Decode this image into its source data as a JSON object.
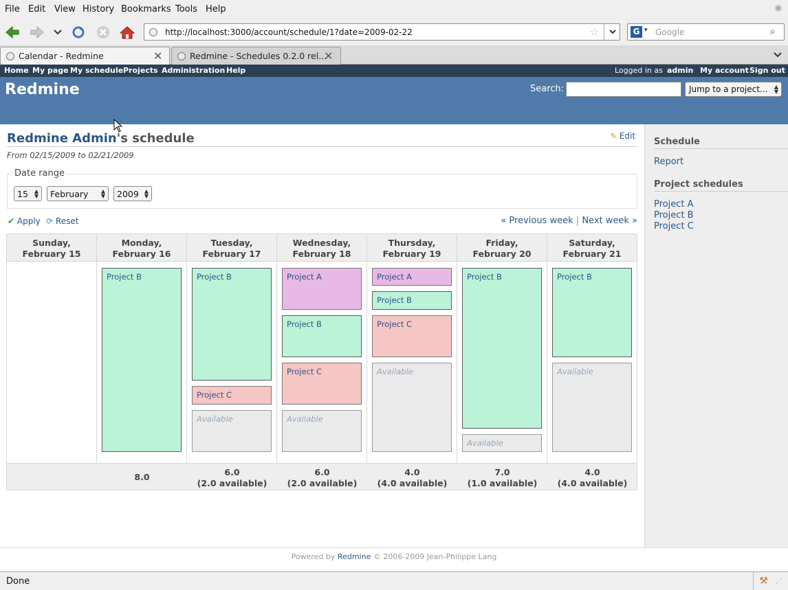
{
  "browser": {
    "menu": [
      "File",
      "Edit",
      "View",
      "History",
      "Bookmarks",
      "Tools",
      "Help"
    ],
    "url": "http://localhost:3000/account/schedule/1?date=2009-02-22",
    "search_placeholder": "Google",
    "tabs": [
      {
        "title": "Calendar - Redmine"
      },
      {
        "title": "Redmine - Schedules 0.2.0 rel..."
      }
    ],
    "status": "Done"
  },
  "topmenu": {
    "left": [
      "Home",
      "My page",
      "My schedule",
      "Projects",
      "Administration",
      "Help"
    ],
    "logged_in_prefix": "Logged in as",
    "user": "admin",
    "my_account": "My account",
    "sign_out": "Sign out"
  },
  "header": {
    "title": "Redmine",
    "search_label": "Search:",
    "jump_label": "Jump to a project..."
  },
  "page": {
    "title_user": "Redmine Admin",
    "title_suffix": "'s schedule",
    "edit": "Edit",
    "from_to": "From 02/15/2009 to 02/21/2009",
    "date_range_legend": "Date range",
    "day_select": "15",
    "month_select": "February",
    "year_select": "2009",
    "apply": "Apply",
    "reset": "Reset",
    "prev_week": "« Previous week",
    "separator": "|",
    "next_week": "Next week »"
  },
  "calendar": {
    "days": [
      {
        "name": "Sunday,",
        "date": "February 15",
        "total": "",
        "available": ""
      },
      {
        "name": "Monday,",
        "date": "February 16",
        "total": "8.0",
        "available": ""
      },
      {
        "name": "Tuesday,",
        "date": "February 17",
        "total": "6.0",
        "available": "(2.0 available)"
      },
      {
        "name": "Wednesday,",
        "date": "February 18",
        "total": "6.0",
        "available": "(2.0 available)"
      },
      {
        "name": "Thursday,",
        "date": "February 19",
        "total": "4.0",
        "available": "(4.0 available)"
      },
      {
        "name": "Friday,",
        "date": "February 20",
        "total": "7.0",
        "available": "(1.0 available)"
      },
      {
        "name": "Saturday,",
        "date": "February 21",
        "total": "4.0",
        "available": "(4.0 available)"
      }
    ],
    "project_a": "Project A",
    "project_b": "Project B",
    "project_c": "Project C",
    "available": "Available"
  },
  "sidebar": {
    "schedule_heading": "Schedule",
    "report": "Report",
    "projects_heading": "Project schedules",
    "projects": [
      "Project A",
      "Project B",
      "Project C"
    ]
  },
  "footer": {
    "powered_by": "Powered by",
    "link": "Redmine",
    "copyright": "© 2006-2009 Jean-Philippe Lang"
  }
}
